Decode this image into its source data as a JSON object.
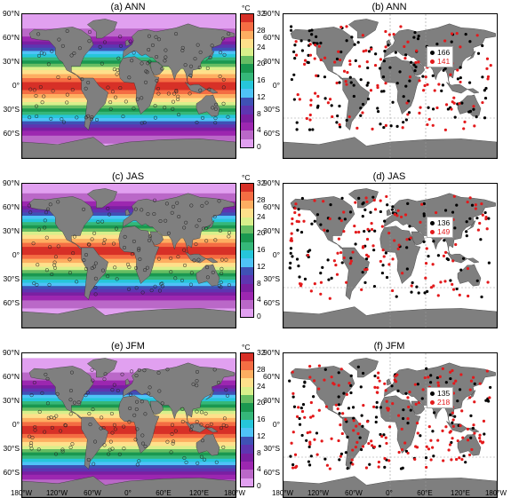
{
  "panels": [
    {
      "title": "(a) ANN",
      "type": "temperature",
      "season": "ANN"
    },
    {
      "title": "(b) ANN",
      "type": "stations",
      "season": "ANN",
      "legend": [
        {
          "label": "166",
          "color": "#000000"
        },
        {
          "label": "141",
          "color": "#e31a1c"
        }
      ]
    },
    {
      "title": "(c) JAS",
      "type": "temperature",
      "season": "JAS"
    },
    {
      "title": "(d) JAS",
      "type": "stations",
      "season": "JAS",
      "legend": [
        {
          "label": "136",
          "color": "#000000"
        },
        {
          "label": "149",
          "color": "#e31a1c"
        }
      ]
    },
    {
      "title": "(e) JFM",
      "type": "temperature",
      "season": "JFM"
    },
    {
      "title": "(f) JFM",
      "type": "stations",
      "season": "JFM",
      "legend": [
        {
          "label": "135",
          "color": "#000000"
        },
        {
          "label": "218",
          "color": "#e31a1c"
        }
      ]
    }
  ],
  "lat_labels": [
    "90°N",
    "60°N",
    "30°N",
    "0°",
    "30°S",
    "60°S"
  ],
  "lon_labels": [
    "180°W",
    "120°W",
    "60°W",
    "0°",
    "60°E",
    "120°E",
    "180°W"
  ],
  "colorbar": {
    "unit": "°C",
    "ticks": [
      "32",
      "28",
      "24",
      "20",
      "16",
      "12",
      "8",
      "4",
      "0"
    ],
    "colors": [
      "#d73027",
      "#f46d43",
      "#fdae61",
      "#fee08b",
      "#d9ef8b",
      "#66bd63",
      "#1a9850",
      "#35b779",
      "#26c6da",
      "#4fc3f7",
      "#3f51b5",
      "#5e35b1",
      "#7b1fa2",
      "#9c27b0",
      "#ba68c8",
      "#e1a0f0"
    ]
  },
  "colors": {
    "land": "#7f7f7f",
    "ocean_blank": "#ffffff",
    "station_black": "#000000",
    "station_red": "#e31a1c"
  }
}
